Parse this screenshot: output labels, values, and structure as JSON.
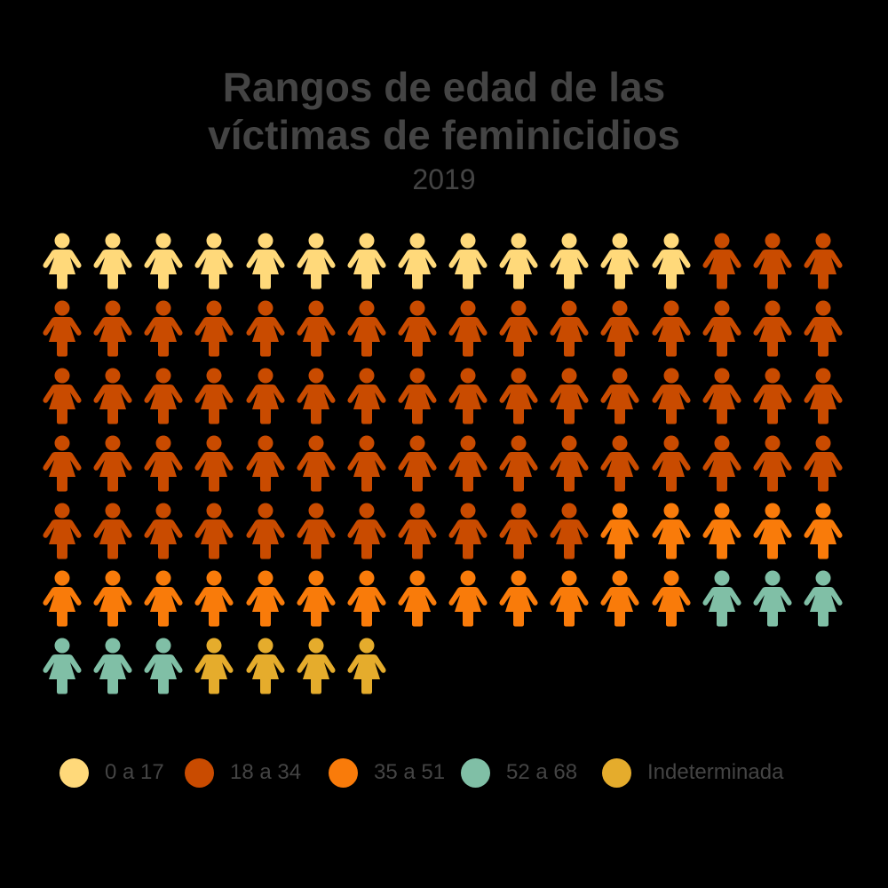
{
  "title_line1": "Rangos de edad de las",
  "title_line2": "víctimas de feminicidios",
  "subtitle": "2019",
  "legend": [
    {
      "label": "0 a 17",
      "color": "#FFD97A"
    },
    {
      "label": "18 a 34",
      "color": "#C94B00"
    },
    {
      "label": "35 a 51",
      "color": "#F97B0A"
    },
    {
      "label": "52 a 68",
      "color": "#80BFA6"
    },
    {
      "label": "Indeterminada",
      "color": "#E5AC2C"
    }
  ],
  "icon": "woman-person-icon",
  "chart_data": {
    "type": "pictogram",
    "title": "Rangos de edad de las víctimas de feminicidios",
    "subtitle": "2019",
    "unit": "1 icon = 1 víctima",
    "icons_per_row": 16,
    "categories": [
      "0 a 17",
      "18 a 34",
      "35 a 51",
      "52 a 68",
      "Indeterminada"
    ],
    "values": [
      13,
      62,
      18,
      6,
      4
    ],
    "total": 103,
    "colors": [
      "#FFD97A",
      "#C94B00",
      "#F97B0A",
      "#80BFA6",
      "#E5AC2C"
    ],
    "legend_position": "bottom"
  }
}
